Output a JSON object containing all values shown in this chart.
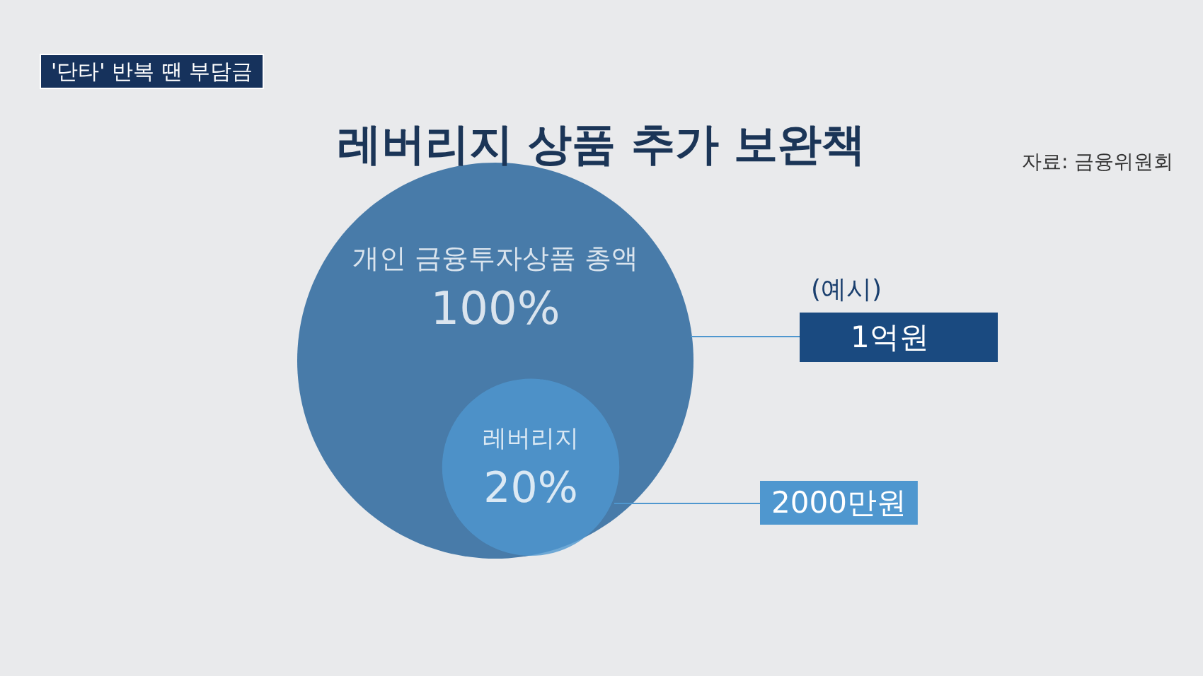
{
  "chart_data": {
    "type": "other",
    "title": "레버리지 상품 추가 보완책",
    "categories": [
      "개인 금융투자상품 총액",
      "레버리지"
    ],
    "values": [
      100,
      20
    ],
    "value_labels": [
      "100%",
      "20%"
    ],
    "colors": [
      "#1f5f99",
      "#4f97cf"
    ],
    "annotations": [
      "'단타' 반복 땐 부담금",
      "자료: 금융위원회",
      "(예시)",
      "1억원",
      "2000만원"
    ]
  }
}
